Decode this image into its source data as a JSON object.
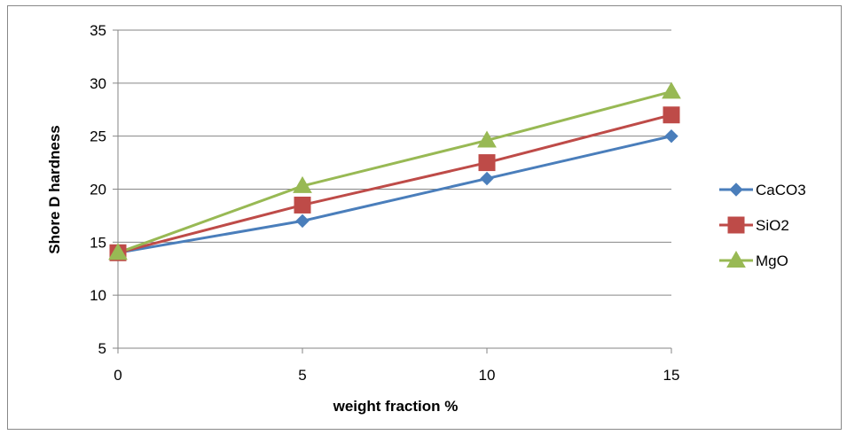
{
  "chart_data": {
    "type": "line",
    "title": "",
    "xlabel": "weight fraction %",
    "ylabel": "Shore D hardness",
    "x": [
      0,
      5,
      10,
      15
    ],
    "xlim": [
      0,
      15
    ],
    "ylim": [
      5,
      35
    ],
    "xticks": [
      0,
      5,
      10,
      15
    ],
    "yticks": [
      5,
      10,
      15,
      20,
      25,
      30,
      35
    ],
    "grid": "horizontal",
    "legend": "right",
    "series": [
      {
        "name": "CaCO3",
        "values": [
          14,
          17,
          21,
          25
        ],
        "color": "#4A7EBB",
        "marker": "diamond"
      },
      {
        "name": "SiO2",
        "values": [
          14,
          18.5,
          22.5,
          27
        ],
        "color": "#BE4B48",
        "marker": "square"
      },
      {
        "name": "MgO",
        "values": [
          14,
          20.3,
          24.6,
          29.2
        ],
        "color": "#98B954",
        "marker": "triangle"
      }
    ]
  }
}
